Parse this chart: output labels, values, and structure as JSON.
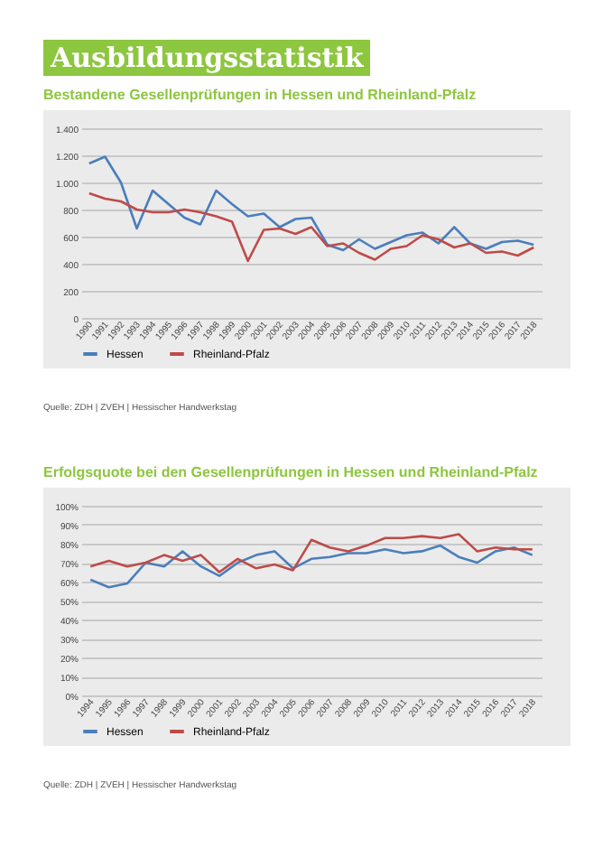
{
  "chart_data": [
    {
      "type": "line",
      "title": "Ausbildungsstatistik",
      "subtitle": "Bestandene Gesellenprüfungen in Hessen und Rheinland-Pfalz",
      "categories": [
        "1990",
        "1991",
        "1992",
        "1993",
        "1994",
        "1995",
        "1996",
        "1997",
        "1998",
        "1999",
        "2000",
        "2001",
        "2002",
        "2003",
        "2004",
        "2005",
        "2006",
        "2007",
        "2008",
        "2009",
        "2010",
        "2011",
        "2012",
        "2013",
        "2014",
        "2015",
        "2016",
        "2017",
        "2018"
      ],
      "series": [
        {
          "name": "Hessen",
          "color": "#4a7ebb",
          "values": [
            1140,
            1190,
            1000,
            660,
            940,
            840,
            740,
            690,
            940,
            840,
            750,
            770,
            670,
            730,
            740,
            540,
            500,
            580,
            510,
            560,
            610,
            630,
            550,
            670,
            550,
            510,
            560,
            570,
            540
          ]
        },
        {
          "name": "Rheinland-Pfalz",
          "color": "#be4b48",
          "values": [
            920,
            880,
            860,
            800,
            780,
            780,
            800,
            780,
            750,
            710,
            420,
            650,
            660,
            620,
            670,
            530,
            550,
            480,
            430,
            510,
            530,
            610,
            580,
            520,
            550,
            480,
            490,
            460,
            520
          ]
        }
      ],
      "ylim": [
        0,
        1400
      ],
      "yticks": [
        {
          "value": 0,
          "label": "0"
        },
        {
          "value": 200,
          "label": "200"
        },
        {
          "value": 400,
          "label": "400"
        },
        {
          "value": 600,
          "label": "600"
        },
        {
          "value": 800,
          "label": "800"
        },
        {
          "value": 1000,
          "label": "1.000"
        },
        {
          "value": 1200,
          "label": "1.200"
        },
        {
          "value": 1400,
          "label": "1.400"
        }
      ],
      "grid": "y",
      "legend": "bottom",
      "annotations": [
        "Quelle: ZDH | ZVEH | Hessischer Handwerkstag"
      ]
    },
    {
      "type": "line",
      "title": "Erfolgsquote bei den Gesellenprüfungen in Hessen und Rheinland-Pfalz",
      "categories": [
        "1994",
        "1995",
        "1996",
        "1997",
        "1998",
        "1999",
        "2000",
        "2001",
        "2002",
        "2003",
        "2004",
        "2005",
        "2006",
        "2007",
        "2008",
        "2009",
        "2010",
        "2011",
        "2012",
        "2013",
        "2014",
        "2015",
        "2016",
        "2017",
        "2018"
      ],
      "series": [
        {
          "name": "Hessen",
          "color": "#4a7ebb",
          "values": [
            61,
            57,
            59,
            70,
            68,
            76,
            68,
            63,
            70,
            74,
            76,
            67,
            72,
            73,
            75,
            75,
            77,
            75,
            76,
            79,
            73,
            70,
            76,
            78,
            74
          ]
        },
        {
          "name": "Rheinland-Pfalz",
          "color": "#be4b48",
          "values": [
            68,
            71,
            68,
            70,
            74,
            71,
            74,
            65,
            72,
            67,
            69,
            66,
            82,
            78,
            76,
            79,
            83,
            83,
            84,
            83,
            85,
            76,
            78,
            77,
            77
          ]
        }
      ],
      "ylim": [
        0,
        100
      ],
      "yticks": [
        {
          "value": 0,
          "label": "0%"
        },
        {
          "value": 10,
          "label": "10%"
        },
        {
          "value": 20,
          "label": "20%"
        },
        {
          "value": 30,
          "label": "30%"
        },
        {
          "value": 40,
          "label": "40%"
        },
        {
          "value": 50,
          "label": "50%"
        },
        {
          "value": 60,
          "label": "60%"
        },
        {
          "value": 70,
          "label": "70%"
        },
        {
          "value": 80,
          "label": "80%"
        },
        {
          "value": 90,
          "label": "90%"
        },
        {
          "value": 100,
          "label": "100%"
        }
      ],
      "grid": "y",
      "legend": "bottom",
      "annotations": [
        "Quelle: ZDH | ZVEH | Hessischer Handwerkstag"
      ]
    }
  ]
}
